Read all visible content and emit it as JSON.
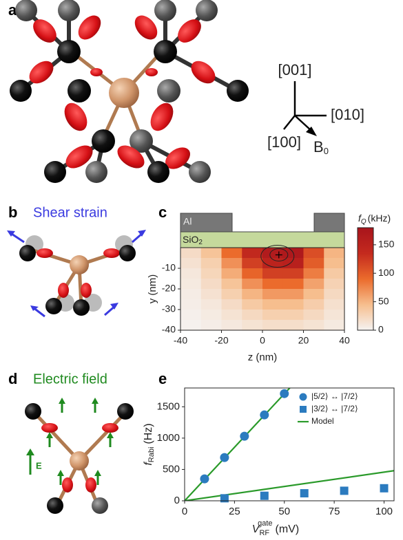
{
  "panels": {
    "a": {
      "label": "a",
      "axes": {
        "z": "[001]",
        "y": "[010]",
        "x": "[100]",
        "b": "B",
        "b_sub": "0"
      }
    },
    "b": {
      "label": "b",
      "title": "Shear strain"
    },
    "c": {
      "label": "c",
      "metal": "Al",
      "oxide": "SiO",
      "oxide_sub": "2"
    },
    "d": {
      "label": "d",
      "title": "Electric field",
      "field": "E"
    },
    "e": {
      "label": "e"
    }
  },
  "chart_data": [
    {
      "type": "heatmap",
      "xlabel": "z (nm)",
      "ylabel": "y (nm)",
      "xlim": [
        -40,
        40
      ],
      "xticks": [
        -40,
        -20,
        0,
        20,
        40
      ],
      "ylim": [
        -40,
        0
      ],
      "yticks": [
        -40,
        -30,
        -20,
        -10
      ],
      "x": [
        -35,
        -25,
        -15,
        -5,
        5,
        15,
        25,
        35
      ],
      "y": [
        -2.5,
        -7.5,
        -12.5,
        -17.5,
        -22.5,
        -27.5,
        -32.5,
        -37.5
      ],
      "values": [
        [
          20,
          40,
          90,
          140,
          165,
          170,
          110,
          50
        ],
        [
          15,
          30,
          70,
          120,
          150,
          155,
          100,
          45
        ],
        [
          10,
          25,
          55,
          95,
          120,
          120,
          80,
          35
        ],
        [
          8,
          20,
          40,
          70,
          90,
          90,
          60,
          28
        ],
        [
          6,
          15,
          30,
          50,
          65,
          65,
          45,
          22
        ],
        [
          5,
          10,
          20,
          35,
          45,
          45,
          32,
          16
        ],
        [
          3,
          7,
          14,
          22,
          30,
          30,
          22,
          12
        ],
        [
          2,
          5,
          9,
          14,
          18,
          18,
          14,
          8
        ]
      ],
      "colorscale": [
        "#f5f3f2",
        "#f6be8e",
        "#eb6b2c",
        "#c42a1e",
        "#a8141c"
      ],
      "colorbar": {
        "label": "f",
        "label_sub": "Q",
        "unit": "(kHz)",
        "lim": [
          0,
          180
        ],
        "ticks": [
          0,
          50,
          100,
          150
        ]
      }
    },
    {
      "type": "scatter",
      "xlabel": {
        "main": "V",
        "sub": "RF",
        "sup": "gate",
        "unit": "(mV)"
      },
      "ylabel": {
        "main": "f",
        "sub": "Rabi",
        "unit": "(Hz)"
      },
      "xlim": [
        0,
        105
      ],
      "xticks": [
        0,
        25,
        50,
        75,
        100
      ],
      "ylim": [
        0,
        1800
      ],
      "yticks": [
        0,
        500,
        1000,
        1500
      ],
      "legend": "upper right",
      "series": [
        {
          "name": "|5/2⟩ ↔ |7/2⟩",
          "color": "#2b7bbf",
          "marker": "circle",
          "x": [
            10,
            20,
            30,
            40,
            50
          ],
          "values": [
            350,
            690,
            1030,
            1370,
            1710
          ]
        },
        {
          "name": "|3/2⟩ ↔ |7/2⟩",
          "color": "#2b7bbf",
          "marker": "square",
          "x": [
            20,
            40,
            60,
            80,
            100
          ],
          "values": [
            40,
            80,
            120,
            160,
            200
          ]
        }
      ],
      "model": {
        "name": "Model",
        "color": "#2a9a2a",
        "lines": [
          {
            "x": [
              0,
              53
            ],
            "values": [
              0,
              1810
            ]
          },
          {
            "x": [
              0,
              105
            ],
            "values": [
              0,
              480
            ]
          }
        ]
      }
    }
  ]
}
